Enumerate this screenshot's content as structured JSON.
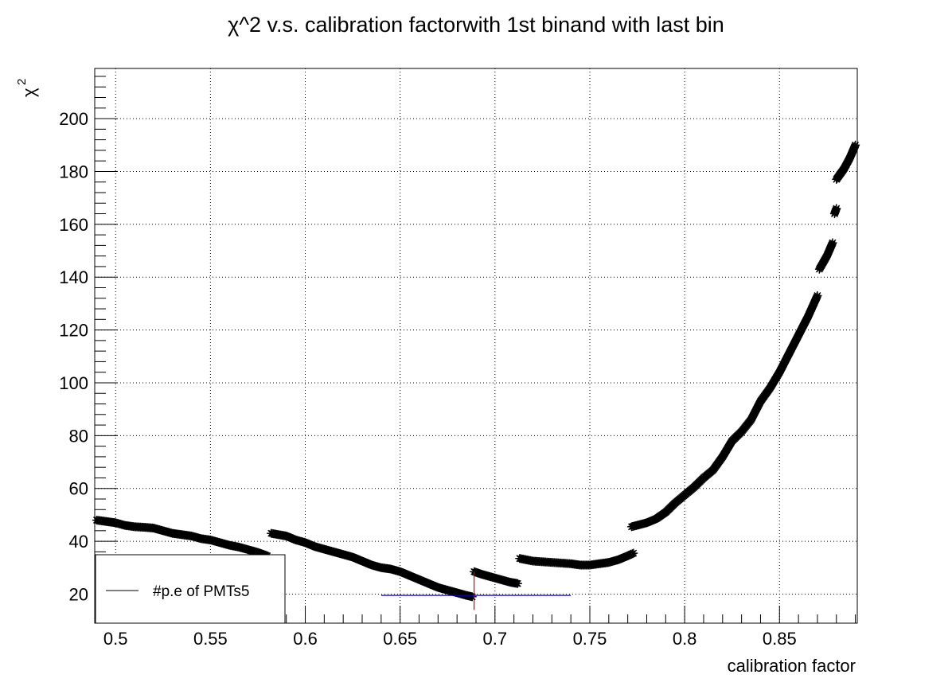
{
  "chart_data": {
    "type": "scatter",
    "title": "χ^2 v.s. calibration factorwith 1st binand with last bin",
    "xlabel": "calibration factor",
    "ylabel": {
      "base": "χ",
      "superscript": "2"
    },
    "xlim": [
      0.489,
      0.891
    ],
    "ylim": [
      9,
      219
    ],
    "xticks": [
      0.5,
      0.55,
      0.6,
      0.65,
      0.7,
      0.75,
      0.8,
      0.85
    ],
    "xtick_labels": [
      "0.5",
      "0.55",
      "0.6",
      "0.65",
      "0.7",
      "0.75",
      "0.8",
      "0.85"
    ],
    "yticks": [
      20,
      40,
      60,
      80,
      100,
      120,
      140,
      160,
      180,
      200
    ],
    "ytick_labels": [
      "20",
      "40",
      "60",
      "80",
      "100",
      "120",
      "140",
      "160",
      "180",
      "200"
    ],
    "grid": true,
    "legend": {
      "position": "bottom-left",
      "entries": [
        "#p.e of PMTs5"
      ]
    },
    "marker": "asterisk",
    "series": [
      {
        "segments": [
          [
            [
              0.49,
              48.0
            ],
            [
              0.5,
              47.0
            ],
            [
              0.505,
              46.0
            ],
            [
              0.51,
              45.5
            ],
            [
              0.515,
              45.3
            ],
            [
              0.52,
              45.0
            ],
            [
              0.525,
              44.0
            ],
            [
              0.53,
              43.0
            ],
            [
              0.535,
              42.5
            ],
            [
              0.54,
              42.0
            ],
            [
              0.545,
              41.0
            ],
            [
              0.55,
              40.5
            ],
            [
              0.555,
              39.5
            ],
            [
              0.56,
              38.5
            ],
            [
              0.565,
              37.8
            ],
            [
              0.57,
              36.8
            ],
            [
              0.575,
              35.8
            ],
            [
              0.58,
              34.5
            ]
          ],
          [
            [
              0.582,
              43.0
            ],
            [
              0.59,
              42.0
            ],
            [
              0.595,
              40.5
            ],
            [
              0.6,
              39.5
            ],
            [
              0.605,
              38.0
            ],
            [
              0.61,
              37.0
            ],
            [
              0.615,
              36.0
            ],
            [
              0.62,
              35.0
            ],
            [
              0.625,
              34.0
            ],
            [
              0.63,
              32.5
            ],
            [
              0.635,
              31.0
            ],
            [
              0.64,
              30.0
            ],
            [
              0.645,
              29.5
            ],
            [
              0.65,
              28.5
            ],
            [
              0.655,
              27.0
            ],
            [
              0.66,
              25.5
            ],
            [
              0.665,
              24.0
            ],
            [
              0.67,
              22.5
            ],
            [
              0.675,
              21.5
            ],
            [
              0.68,
              20.5
            ],
            [
              0.685,
              19.5
            ],
            [
              0.688,
              19.0
            ]
          ],
          [
            [
              0.689,
              28.5
            ],
            [
              0.693,
              27.5
            ],
            [
              0.698,
              26.5
            ],
            [
              0.703,
              25.5
            ],
            [
              0.708,
              24.5
            ],
            [
              0.712,
              24.0
            ]
          ],
          [
            [
              0.713,
              33.5
            ],
            [
              0.72,
              32.5
            ],
            [
              0.73,
              32.0
            ],
            [
              0.74,
              31.5
            ],
            [
              0.745,
              31.0
            ],
            [
              0.75,
              31.0
            ],
            [
              0.755,
              31.5
            ],
            [
              0.76,
              32.0
            ],
            [
              0.765,
              33.0
            ],
            [
              0.77,
              34.5
            ],
            [
              0.773,
              35.5
            ]
          ],
          [
            [
              0.772,
              45.5
            ],
            [
              0.78,
              47.0
            ],
            [
              0.785,
              48.5
            ],
            [
              0.79,
              51.0
            ],
            [
              0.795,
              54.5
            ],
            [
              0.8,
              57.5
            ],
            [
              0.805,
              60.5
            ],
            [
              0.81,
              64.0
            ],
            [
              0.815,
              67.0
            ],
            [
              0.82,
              72.0
            ],
            [
              0.825,
              78.0
            ],
            [
              0.83,
              81.5
            ],
            [
              0.835,
              86.0
            ],
            [
              0.84,
              93.0
            ],
            [
              0.845,
              98.0
            ],
            [
              0.85,
              104.0
            ],
            [
              0.855,
              111.0
            ],
            [
              0.86,
              118.0
            ],
            [
              0.865,
              125.0
            ],
            [
              0.87,
              133.0
            ]
          ],
          [
            [
              0.871,
              143.0
            ],
            [
              0.875,
              148.0
            ],
            [
              0.878,
              153.0
            ]
          ],
          [
            [
              0.879,
              164.0
            ],
            [
              0.88,
              166.0
            ]
          ],
          [
            [
              0.88,
              177.0
            ],
            [
              0.884,
              181.0
            ],
            [
              0.887,
              185.0
            ],
            [
              0.89,
              190.0
            ]
          ]
        ]
      }
    ],
    "markers": {
      "horizontal_line": {
        "x_start": 0.64,
        "x_end": 0.74,
        "y": 19.5,
        "color": "#0000cc"
      },
      "vertical_line": {
        "x": 0.689,
        "y_start": 14,
        "y_end": 28.5,
        "color": "#cc0000"
      }
    }
  }
}
